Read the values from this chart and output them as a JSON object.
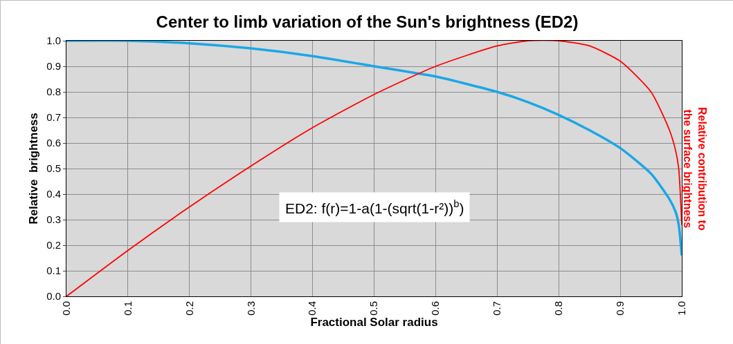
{
  "chart_data": {
    "type": "line",
    "title": "Center to limb variation of the Sun's brightness (ED2)",
    "xlabel": "Fractional Solar radius",
    "ylabel": "Relative  brightness",
    "y2label": "Relative contribution to the surface brightness",
    "annotations": [
      "ED2: f(r)=1-a(1-(sqrt(1-r²))$^{b}$)"
    ],
    "series": [
      {
        "color": "#1aa7e6",
        "x": [
          0,
          0.1,
          0.2,
          0.3,
          0.4,
          0.5,
          0.6,
          0.7,
          0.75,
          0.8,
          0.85,
          0.9,
          0.95,
          0.98,
          0.99,
          0.995,
          1.0
        ],
        "values": [
          1.0,
          1.0,
          0.99,
          0.97,
          0.94,
          0.9,
          0.86,
          0.8,
          0.76,
          0.71,
          0.65,
          0.58,
          0.48,
          0.38,
          0.33,
          0.28,
          0.16
        ]
      },
      {
        "color": "#ff0000",
        "x": [
          0,
          0.1,
          0.2,
          0.3,
          0.4,
          0.5,
          0.6,
          0.7,
          0.75,
          0.8,
          0.85,
          0.9,
          0.95,
          0.98,
          0.99,
          0.995,
          1.0
        ],
        "values": [
          0,
          0.18,
          0.35,
          0.51,
          0.66,
          0.79,
          0.9,
          0.98,
          1.0,
          1.0,
          0.98,
          0.92,
          0.8,
          0.65,
          0.57,
          0.5,
          0.28
        ]
      }
    ],
    "xlim": [
      0,
      1
    ],
    "ylim": [
      0,
      1
    ],
    "xticks": [
      {
        "value": 0,
        "label": "0.0"
      },
      0.1,
      0.2,
      0.3,
      0.4,
      0.5,
      0.6,
      0.7,
      0.8,
      0.9,
      {
        "value": 1,
        "label": "1.0"
      }
    ],
    "yticks": [
      {
        "value": 0,
        "label": "0.0"
      },
      0.1,
      0.2,
      0.3,
      0.4,
      0.5,
      0.6,
      0.7,
      0.8,
      0.9,
      {
        "value": 1,
        "label": "1.0"
      }
    ],
    "grid": true,
    "marker": "none",
    "line_style": "solid"
  }
}
